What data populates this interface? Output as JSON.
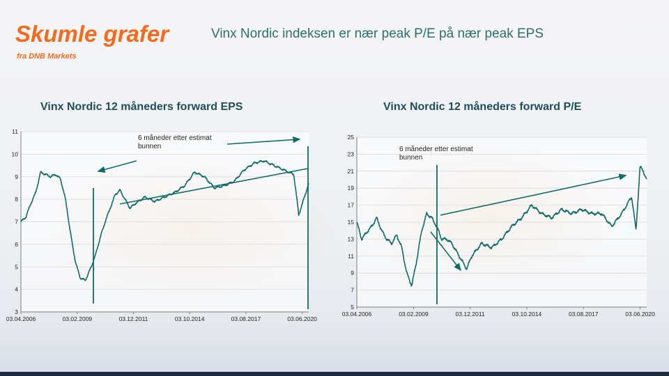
{
  "slide": {
    "title": "Skumle grafer",
    "subtitle": "fra DNB Markets",
    "headline": "Vinx Nordic indeksen er nær peak P/E på nær peak EPS"
  },
  "colors": {
    "title": "#f26a1b",
    "series": "#0f6b68",
    "chart_title": "#1f4e5a"
  },
  "chart_data": [
    {
      "type": "line",
      "title": "Vinx Nordic 12 måneders forward EPS",
      "x": [
        "2006-04-03",
        "2006-07-01",
        "2006-10-01",
        "2007-01-01",
        "2007-04-01",
        "2007-07-01",
        "2007-10-01",
        "2008-01-01",
        "2008-04-01",
        "2008-07-01",
        "2008-10-01",
        "2009-01-01",
        "2009-04-01",
        "2009-07-01",
        "2009-10-01",
        "2010-01-01",
        "2010-04-01",
        "2010-07-01",
        "2010-10-01",
        "2011-01-01",
        "2011-04-01",
        "2011-07-01",
        "2011-10-01",
        "2012-01-01",
        "2012-07-01",
        "2013-01-01",
        "2013-07-01",
        "2014-01-01",
        "2014-07-01",
        "2015-01-01",
        "2015-07-01",
        "2016-01-01",
        "2016-07-01",
        "2017-01-01",
        "2017-07-01",
        "2018-01-01",
        "2018-07-01",
        "2019-01-01",
        "2019-07-01",
        "2020-01-01",
        "2020-04-01",
        "2020-07-01",
        "2020-10-01"
      ],
      "values": [
        7.0,
        7.2,
        7.8,
        8.3,
        9.2,
        9.1,
        9.0,
        9.1,
        8.9,
        8.0,
        6.5,
        5.2,
        4.5,
        4.4,
        4.9,
        5.5,
        6.3,
        7.0,
        7.6,
        8.2,
        8.4,
        8.0,
        7.6,
        7.8,
        8.1,
        7.9,
        8.1,
        8.3,
        8.6,
        9.2,
        9.0,
        8.5,
        8.6,
        8.8,
        9.3,
        9.6,
        9.7,
        9.5,
        9.3,
        9.1,
        7.3,
        8.0,
        8.7
      ],
      "xticks": [
        "03.04.2006",
        "03.02.2009",
        "03.12.2011",
        "03.10.2014",
        "03.08.2017",
        "03.06.2020"
      ],
      "yticks": [
        3,
        4,
        5,
        6,
        7,
        8,
        9,
        10,
        11
      ],
      "ylim": [
        3,
        11
      ],
      "annotation": "6 måneder etter estimat bunnen"
    },
    {
      "type": "line",
      "title": "Vinx Nordic 12 måneders forward P/E",
      "x": [
        "2006-04-03",
        "2006-07-01",
        "2006-10-01",
        "2007-01-01",
        "2007-04-01",
        "2007-07-01",
        "2007-10-01",
        "2008-01-01",
        "2008-04-01",
        "2008-07-01",
        "2008-10-01",
        "2009-01-01",
        "2009-04-01",
        "2009-07-01",
        "2009-10-01",
        "2010-01-01",
        "2010-04-01",
        "2010-07-01",
        "2010-10-01",
        "2011-01-01",
        "2011-04-01",
        "2011-07-01",
        "2011-10-01",
        "2012-01-01",
        "2012-07-01",
        "2013-01-01",
        "2013-07-01",
        "2014-01-01",
        "2014-07-01",
        "2015-01-01",
        "2015-07-01",
        "2016-01-01",
        "2016-07-01",
        "2017-01-01",
        "2017-07-01",
        "2018-01-01",
        "2018-07-01",
        "2019-01-01",
        "2019-07-01",
        "2020-01-01",
        "2020-03-20",
        "2020-06-01",
        "2020-08-01",
        "2020-10-01"
      ],
      "values": [
        15.0,
        13.0,
        13.8,
        14.5,
        15.5,
        14.0,
        13.0,
        12.5,
        13.5,
        12.0,
        9.0,
        7.5,
        10.5,
        14.0,
        16.0,
        15.5,
        14.5,
        13.0,
        13.0,
        12.5,
        11.5,
        10.5,
        9.5,
        11.0,
        12.5,
        12.0,
        13.0,
        14.5,
        15.5,
        17.0,
        16.0,
        15.5,
        16.5,
        16.0,
        16.5,
        16.0,
        16.0,
        14.5,
        16.0,
        18.0,
        14.0,
        21.5,
        21.0,
        20.0
      ],
      "xticks": [
        "03.04.2006",
        "03.02.2009",
        "03.12.2011",
        "03.10.2014",
        "03.08.2017",
        "03.06.2020"
      ],
      "yticks": [
        5,
        7,
        9,
        11,
        13,
        15,
        17,
        19,
        21,
        23,
        25
      ],
      "ylim": [
        5,
        25
      ],
      "annotation": "6 måneder etter estimat bunnen"
    }
  ]
}
